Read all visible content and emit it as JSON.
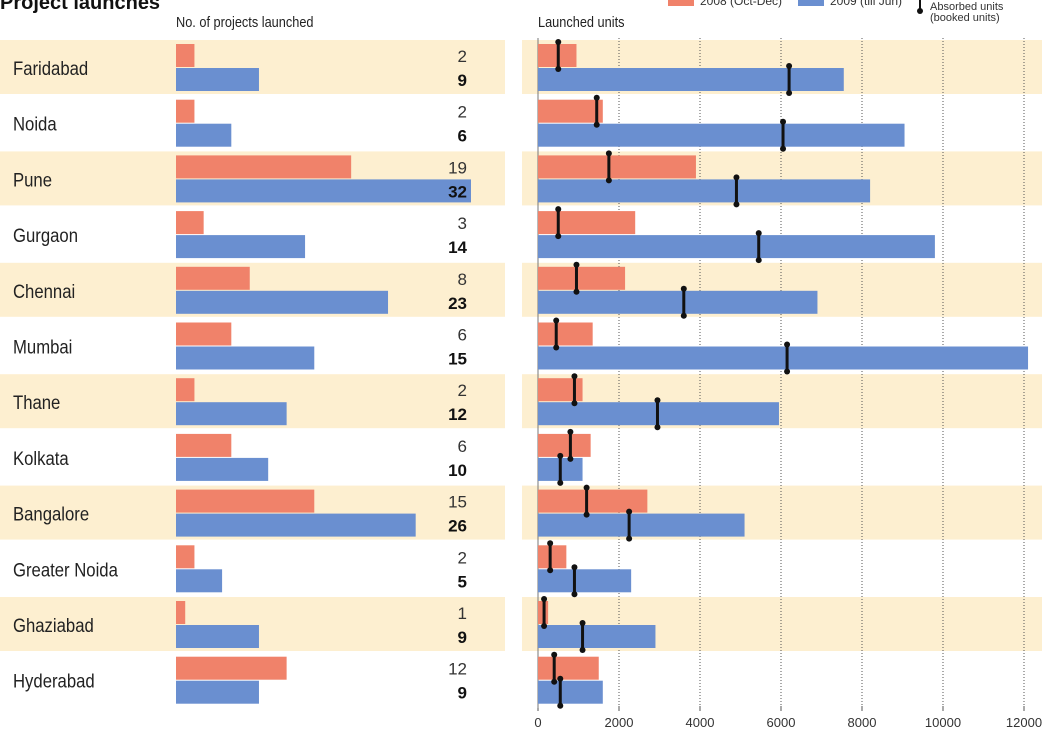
{
  "header": {
    "title": "Project launches",
    "left_column_label": "No. of projects launched",
    "right_column_label": "Launched units"
  },
  "legend": {
    "series_2008": "2008 (Oct-Dec)",
    "series_2009": "2009 (till Jun)",
    "absorbed": "Absorbed units",
    "absorbed_sub": "(booked units)"
  },
  "colors": {
    "series_2008": "#f0826a",
    "series_2009": "#6a8fd0",
    "band": "#fdefd0",
    "marker": "#111111",
    "grid": "#555555"
  },
  "chart_data": [
    {
      "type": "bar",
      "title": "No. of projects launched",
      "categories": [
        "Faridabad",
        "Noida",
        "Pune",
        "Gurgaon",
        "Chennai",
        "Mumbai",
        "Thane",
        "Kolkata",
        "Bangalore",
        "Greater Noida",
        "Ghaziabad",
        "Hyderabad"
      ],
      "series": [
        {
          "name": "2008 (Oct-Dec)",
          "values": [
            2,
            2,
            19,
            3,
            8,
            6,
            2,
            6,
            15,
            2,
            1,
            12
          ]
        },
        {
          "name": "2009 (till Jun)",
          "values": [
            9,
            6,
            32,
            14,
            23,
            15,
            12,
            10,
            26,
            5,
            9,
            9
          ]
        }
      ],
      "orientation": "horizontal",
      "xlim": [
        0,
        32
      ]
    },
    {
      "type": "bar",
      "title": "Launched units",
      "categories": [
        "Faridabad",
        "Noida",
        "Pune",
        "Gurgaon",
        "Chennai",
        "Mumbai",
        "Thane",
        "Kolkata",
        "Bangalore",
        "Greater Noida",
        "Ghaziabad",
        "Hyderabad"
      ],
      "series": [
        {
          "name": "2008 (Oct-Dec)",
          "values": [
            950,
            1600,
            3900,
            2400,
            2150,
            1350,
            1100,
            1300,
            2700,
            700,
            250,
            1500
          ],
          "absorbed": [
            500,
            1450,
            1750,
            500,
            950,
            450,
            900,
            800,
            1200,
            300,
            150,
            400
          ]
        },
        {
          "name": "2009 (till Jun)",
          "values": [
            7550,
            9050,
            8200,
            9800,
            6900,
            12100,
            5950,
            1100,
            5100,
            2300,
            2900,
            1600
          ],
          "absorbed": [
            6200,
            6050,
            4900,
            5450,
            3600,
            6150,
            2950,
            550,
            2250,
            900,
            1100,
            550
          ]
        }
      ],
      "orientation": "horizontal",
      "x_ticks": [
        0,
        2000,
        4000,
        6000,
        8000,
        10000,
        12000
      ],
      "xlim": [
        0,
        12000
      ],
      "grid": "vertical, dotted"
    }
  ]
}
